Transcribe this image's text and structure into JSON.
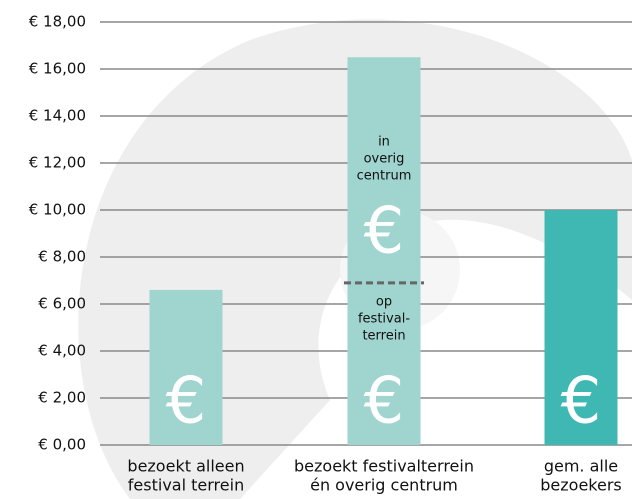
{
  "chart_data": {
    "type": "bar",
    "categories": [
      [
        "bezoekt alleen",
        "festival terrein"
      ],
      [
        "bezoekt festivalterrein",
        "én overig centrum"
      ],
      [
        "gem. alle",
        "bezoekers"
      ]
    ],
    "values": [
      6.6,
      16.5,
      10.0
    ],
    "colors": [
      "#9fd4cf",
      "#9fd4cf",
      "#3fb8b4"
    ],
    "bar_symbol": "€",
    "ylim": [
      0,
      18
    ],
    "yticks": [
      {
        "value": 0,
        "label": "€ 0,00"
      },
      {
        "value": 2,
        "label": "€ 2,00"
      },
      {
        "value": 4,
        "label": "€ 4,00"
      },
      {
        "value": 6,
        "label": "€ 6,00"
      },
      {
        "value": 8,
        "label": "€ 8,00"
      },
      {
        "value": 10,
        "label": "€ 10,00"
      },
      {
        "value": 12,
        "label": "€ 12,00"
      },
      {
        "value": 14,
        "label": "€ 14,00"
      },
      {
        "value": 16,
        "label": "€ 16,00"
      },
      {
        "value": 18,
        "label": "€ 18,00"
      }
    ],
    "grid": true,
    "split": {
      "bar": 1,
      "value": 6.9,
      "above": [
        "in",
        "overig",
        "centrum"
      ],
      "below": [
        "op",
        "festival-",
        "terrein"
      ]
    }
  }
}
